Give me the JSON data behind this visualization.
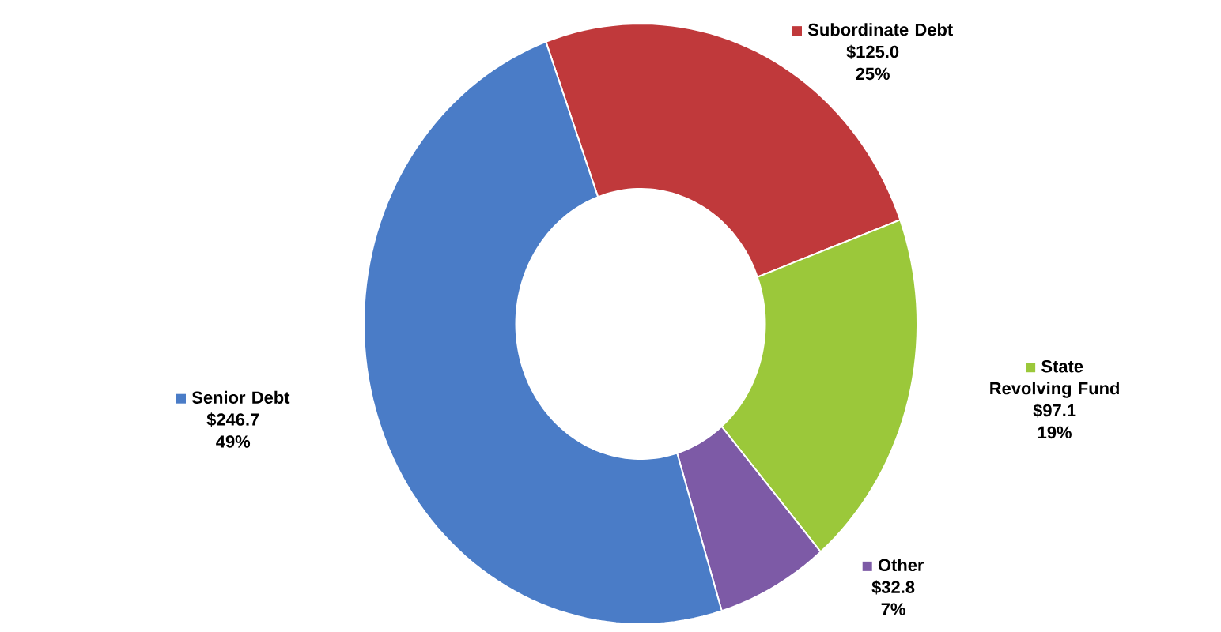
{
  "chart_data": {
    "type": "donut",
    "categories": [
      "Subordinate Debt",
      "State Revolving Fund",
      "Other",
      "Senior Debt"
    ],
    "values": [
      125.0,
      97.1,
      32.8,
      246.7
    ],
    "colors": [
      "#c0393b",
      "#9bc83a",
      "#7d5aa6",
      "#4a7cc7"
    ],
    "value_labels": [
      "$125.0",
      "$97.1",
      "$32.8",
      "$246.7"
    ],
    "annotations": [
      "25%",
      "19%",
      "7%",
      "49%"
    ],
    "legend": "right"
  }
}
